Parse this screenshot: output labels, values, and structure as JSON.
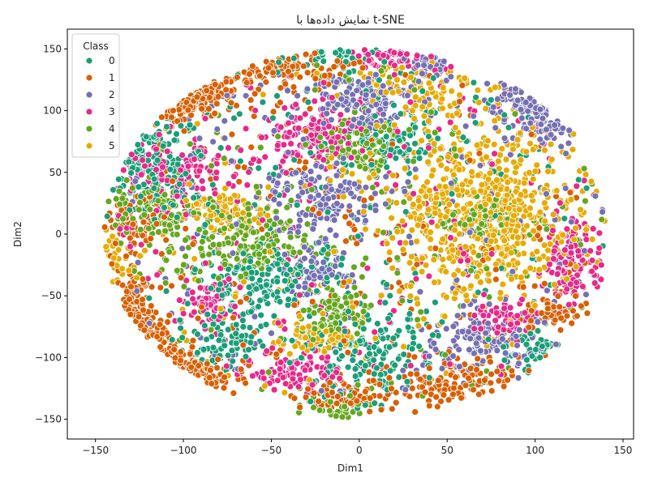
{
  "chart_data": {
    "type": "scatter",
    "title": "نمایش داده‌ها با t-SNE",
    "xlabel": "Dim1",
    "ylabel": "Dim2",
    "xlim": [
      -166,
      156
    ],
    "ylim": [
      -166,
      166
    ],
    "xticks": [
      -150,
      -100,
      -50,
      0,
      50,
      100,
      150
    ],
    "yticks": [
      -150,
      -100,
      -50,
      0,
      50,
      100,
      150
    ],
    "grid": false,
    "legend": {
      "title": "Class",
      "placement": "top-left"
    },
    "series": [
      {
        "name": "0",
        "color": "#1b9e77",
        "clusters": [
          {
            "cx": -118,
            "cy": 55,
            "rx": 22,
            "ry": 32,
            "n": 140
          },
          {
            "cx": -55,
            "cy": -40,
            "rx": 30,
            "ry": 25,
            "n": 150
          },
          {
            "cx": 10,
            "cy": -95,
            "rx": 30,
            "ry": 30,
            "n": 140
          },
          {
            "cx": 20,
            "cy": 75,
            "rx": 20,
            "ry": 20,
            "n": 90
          },
          {
            "cx": -80,
            "cy": -85,
            "rx": 20,
            "ry": 20,
            "n": 80
          },
          {
            "cx": -20,
            "cy": 145,
            "rx": 30,
            "ry": 10,
            "n": 40
          },
          {
            "cx": 100,
            "cy": -95,
            "rx": 15,
            "ry": 12,
            "n": 40
          },
          {
            "cx": 0,
            "cy": 0,
            "rx": 140,
            "ry": 140,
            "n": 200
          }
        ]
      },
      {
        "name": "1",
        "color": "#d95f02",
        "clusters": [
          {
            "cx": -92,
            "cy": 115,
            "rx": 30,
            "ry": 20,
            "n": 140
          },
          {
            "cx": -128,
            "cy": -70,
            "rx": 15,
            "ry": 35,
            "n": 140
          },
          {
            "cx": -40,
            "cy": 135,
            "rx": 30,
            "ry": 15,
            "n": 100
          },
          {
            "cx": 50,
            "cy": -120,
            "rx": 35,
            "ry": 20,
            "n": 130
          },
          {
            "cx": -95,
            "cy": -115,
            "rx": 25,
            "ry": 15,
            "n": 90
          },
          {
            "cx": 110,
            "cy": -60,
            "rx": 15,
            "ry": 15,
            "n": 60
          },
          {
            "cx": -125,
            "cy": 10,
            "rx": 15,
            "ry": 15,
            "n": 60
          },
          {
            "cx": -10,
            "cy": -130,
            "rx": 25,
            "ry": 10,
            "n": 60
          },
          {
            "cx": 0,
            "cy": 0,
            "rx": 140,
            "ry": 140,
            "n": 200
          }
        ]
      },
      {
        "name": "2",
        "color": "#7570b3",
        "clusters": [
          {
            "cx": 100,
            "cy": 100,
            "rx": 20,
            "ry": 25,
            "n": 140
          },
          {
            "cx": 0,
            "cy": 110,
            "rx": 25,
            "ry": 20,
            "n": 140
          },
          {
            "cx": -20,
            "cy": 30,
            "rx": 30,
            "ry": 30,
            "n": 140
          },
          {
            "cx": 70,
            "cy": -85,
            "rx": 25,
            "ry": 20,
            "n": 120
          },
          {
            "cx": -25,
            "cy": -30,
            "rx": 15,
            "ry": 15,
            "n": 60
          },
          {
            "cx": 40,
            "cy": 140,
            "rx": 15,
            "ry": 10,
            "n": 40
          },
          {
            "cx": 0,
            "cy": 0,
            "rx": 140,
            "ry": 140,
            "n": 180
          }
        ]
      },
      {
        "name": "3",
        "color": "#e7298a",
        "clusters": [
          {
            "cx": -28,
            "cy": 80,
            "rx": 25,
            "ry": 20,
            "n": 130
          },
          {
            "cx": -100,
            "cy": 50,
            "rx": 25,
            "ry": 25,
            "n": 130
          },
          {
            "cx": 122,
            "cy": -20,
            "rx": 14,
            "ry": 28,
            "n": 110
          },
          {
            "cx": -35,
            "cy": -110,
            "rx": 20,
            "ry": 15,
            "n": 90
          },
          {
            "cx": 20,
            "cy": 145,
            "rx": 25,
            "ry": 10,
            "n": 60
          },
          {
            "cx": -85,
            "cy": -55,
            "rx": 15,
            "ry": 15,
            "n": 60
          },
          {
            "cx": 85,
            "cy": -70,
            "rx": 15,
            "ry": 12,
            "n": 60
          },
          {
            "cx": 0,
            "cy": 0,
            "rx": 140,
            "ry": 140,
            "n": 180
          }
        ]
      },
      {
        "name": "4",
        "color": "#66a61e",
        "clusters": [
          {
            "cx": -65,
            "cy": -10,
            "rx": 30,
            "ry": 25,
            "n": 170
          },
          {
            "cx": -115,
            "cy": 20,
            "rx": 20,
            "ry": 20,
            "n": 110
          },
          {
            "cx": 0,
            "cy": 70,
            "rx": 20,
            "ry": 20,
            "n": 90
          },
          {
            "cx": -15,
            "cy": -65,
            "rx": 20,
            "ry": 20,
            "n": 90
          },
          {
            "cx": -10,
            "cy": -140,
            "rx": 15,
            "ry": 10,
            "n": 40
          },
          {
            "cx": 70,
            "cy": 15,
            "rx": 20,
            "ry": 15,
            "n": 60
          },
          {
            "cx": 0,
            "cy": 0,
            "rx": 140,
            "ry": 140,
            "n": 160
          }
        ]
      },
      {
        "name": "5",
        "color": "#e6ab02",
        "clusters": [
          {
            "cx": 70,
            "cy": 20,
            "rx": 45,
            "ry": 60,
            "n": 650
          },
          {
            "cx": 30,
            "cy": 120,
            "rx": 30,
            "ry": 20,
            "n": 100
          },
          {
            "cx": -75,
            "cy": 20,
            "rx": 20,
            "ry": 15,
            "n": 80
          },
          {
            "cx": -20,
            "cy": -80,
            "rx": 20,
            "ry": 15,
            "n": 70
          },
          {
            "cx": -140,
            "cy": -20,
            "rx": 10,
            "ry": 15,
            "n": 30
          },
          {
            "cx": 0,
            "cy": 0,
            "rx": 140,
            "ry": 140,
            "n": 120
          }
        ]
      }
    ]
  }
}
